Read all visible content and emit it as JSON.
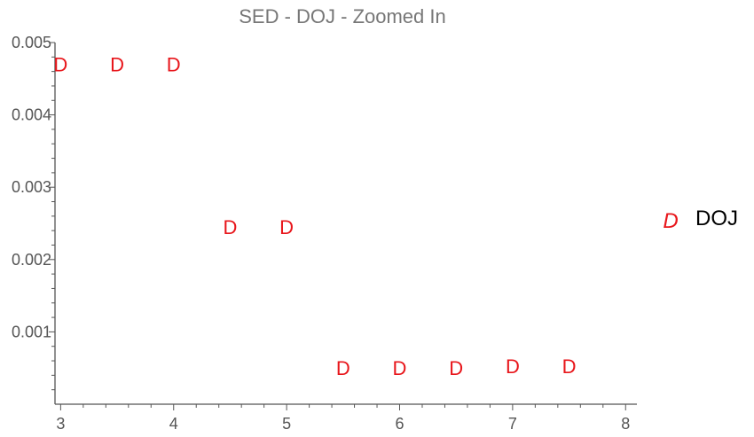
{
  "chart_data": {
    "type": "scatter",
    "title": "SED - DOJ - Zoomed In",
    "xlabel": "",
    "ylabel": "",
    "xlim": [
      2.95,
      8.1
    ],
    "ylim": [
      0,
      0.005
    ],
    "x_ticks": [
      3,
      4,
      5,
      6,
      7,
      8
    ],
    "x_tick_labels": [
      "3",
      "4",
      "5",
      "6",
      "7",
      "8"
    ],
    "y_ticks": [
      0.001,
      0.002,
      0.003,
      0.004,
      0.005
    ],
    "y_tick_labels": [
      "0.001",
      "0.002",
      "0.003",
      "0.004",
      "0.005"
    ],
    "grid": false,
    "legend_position": "right",
    "series": [
      {
        "name": "DOJ",
        "marker": "D",
        "color": "#e8161b",
        "x": [
          3,
          3.5,
          4,
          4.5,
          5,
          5.5,
          6,
          6.5,
          7,
          7.5
        ],
        "y": [
          0.0047,
          0.0047,
          0.0047,
          0.00245,
          0.00245,
          0.0005,
          0.0005,
          0.0005,
          0.00053,
          0.00053
        ]
      }
    ]
  }
}
